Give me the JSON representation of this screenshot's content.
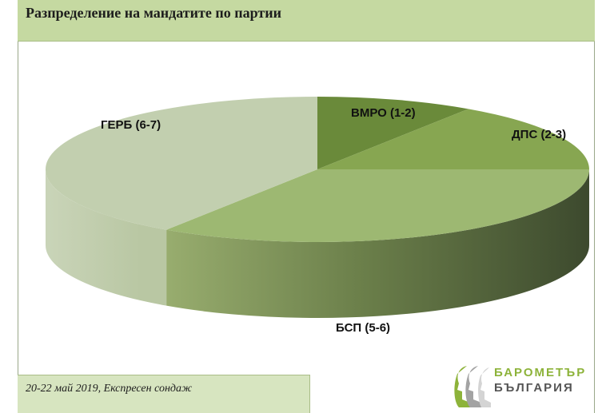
{
  "header": {
    "title": "Разпределение на мандатите по партии"
  },
  "footer": {
    "note": "20-22 май 2019, Експресен сондаж"
  },
  "logo": {
    "line1": "БАРОМЕТЪР",
    "line2": "БЪЛГАРИЯ",
    "icon": "faces-silhouette-icon"
  },
  "colors": {
    "header_bg": "#c5d9a1",
    "footer_bg": "#d7e5c0",
    "ВМРО": "#6a8a3a",
    "ДПС": "#87a651",
    "БСП": "#9db872",
    "ГЕРБ": "#c2cfaf"
  },
  "chart_data": {
    "type": "pie",
    "style": "3d",
    "title": "Разпределение на мандатите по партии",
    "categories": [
      "ВМРО (1-2)",
      "ДПС (2-3)",
      "БСП (5-6)",
      "ГЕРБ (6-7)"
    ],
    "values": [
      1.5,
      2.5,
      5.5,
      6.5
    ],
    "legend": "none"
  }
}
